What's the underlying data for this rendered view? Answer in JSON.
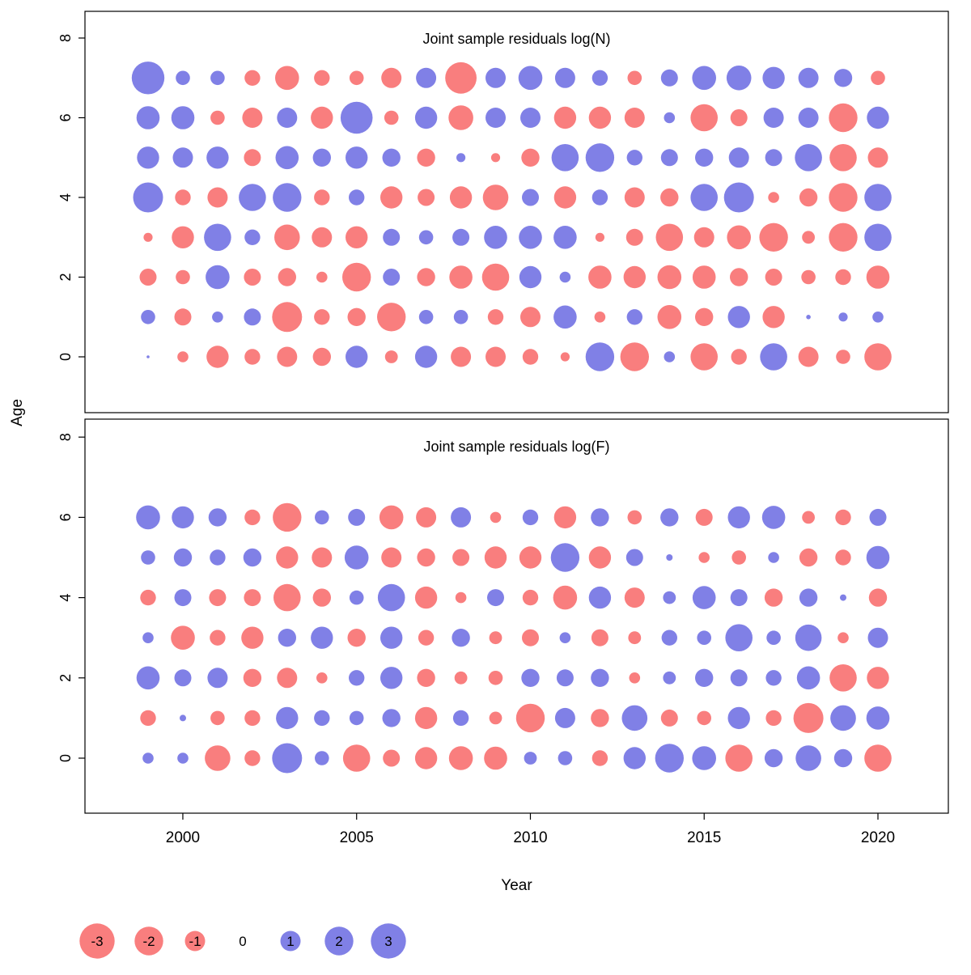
{
  "figure": {
    "xlabel": "Year",
    "ylabel": "Age",
    "colors": {
      "negative": "#f97e7e",
      "positive": "#8080e6",
      "panel_title": "#787878",
      "axis": "#000000",
      "background": "#ffffff"
    },
    "legend": {
      "values": [
        -3,
        -2,
        -1,
        0,
        1,
        2,
        3
      ]
    }
  },
  "chart_data": [
    {
      "type": "bubble",
      "title": "Joint sample residuals log(N)",
      "xlabel": "Year",
      "ylabel": "Age",
      "x": [
        1999,
        2000,
        2001,
        2002,
        2003,
        2004,
        2005,
        2006,
        2007,
        2008,
        2009,
        2010,
        2011,
        2012,
        2013,
        2014,
        2015,
        2016,
        2017,
        2018,
        2019,
        2020
      ],
      "xticks": [
        2000,
        2005,
        2010,
        2015,
        2020
      ],
      "yticks": [
        0,
        2,
        4,
        6,
        8
      ],
      "ylim": [
        -1.5,
        8.5
      ],
      "size_encoding": "radius proportional to sqrt(abs(residual))",
      "color_encoding": "red = negative residual, blue = positive residual",
      "series": [
        {
          "age": 7,
          "values": [
            2.6,
            0.5,
            0.5,
            -0.6,
            -1.4,
            -0.6,
            -0.5,
            -1.0,
            1.0,
            -2.4,
            1.0,
            1.4,
            1.0,
            0.6,
            -0.5,
            0.7,
            1.4,
            1.5,
            1.2,
            1.0,
            0.8,
            -0.5
          ]
        },
        {
          "age": 6,
          "values": [
            1.3,
            1.3,
            -0.5,
            -1.0,
            1.0,
            -1.2,
            2.5,
            -0.5,
            1.2,
            -1.5,
            1.0,
            1.0,
            -1.2,
            -1.2,
            -1.0,
            0.3,
            -1.8,
            -0.7,
            1.0,
            1.0,
            -2.0,
            1.2
          ]
        },
        {
          "age": 5,
          "values": [
            1.2,
            1.0,
            1.2,
            -0.7,
            1.3,
            0.8,
            1.2,
            0.8,
            -0.8,
            0.2,
            -0.2,
            -0.8,
            1.8,
            2.0,
            0.6,
            0.7,
            0.8,
            1.0,
            0.7,
            1.8,
            -1.8,
            -1.0
          ]
        },
        {
          "age": 4,
          "values": [
            2.2,
            -0.6,
            -1.0,
            1.8,
            2.0,
            -0.6,
            0.6,
            -1.2,
            -0.7,
            -1.2,
            -1.6,
            0.7,
            -1.2,
            0.6,
            -1.0,
            -0.8,
            1.8,
            2.2,
            -0.3,
            -0.8,
            -2.0,
            1.8
          ]
        },
        {
          "age": 3,
          "values": [
            -0.2,
            -1.2,
            1.8,
            0.6,
            -1.6,
            -1.0,
            -1.2,
            0.7,
            0.5,
            0.7,
            1.3,
            1.3,
            1.3,
            -0.2,
            -0.7,
            -1.8,
            -1.0,
            -1.4,
            -2.0,
            -0.4,
            -2.0,
            1.8
          ]
        },
        {
          "age": 2,
          "values": [
            -0.7,
            -0.5,
            1.4,
            -0.7,
            -0.8,
            -0.3,
            -2.0,
            0.7,
            -0.8,
            -1.3,
            -1.8,
            1.2,
            0.3,
            -1.3,
            -1.2,
            -1.4,
            -1.3,
            -0.8,
            -0.7,
            -0.5,
            -0.6,
            -1.3
          ]
        },
        {
          "age": 1,
          "values": [
            0.5,
            -0.7,
            0.3,
            0.7,
            -2.2,
            -0.6,
            -0.8,
            -2.0,
            0.5,
            0.5,
            -0.6,
            -1.0,
            1.3,
            -0.3,
            0.6,
            -1.4,
            -0.8,
            1.2,
            -1.2,
            0.05,
            0.2,
            0.3
          ]
        },
        {
          "age": 0,
          "values": [
            0.02,
            -0.3,
            -1.2,
            -0.6,
            -1.0,
            -0.8,
            1.2,
            -0.4,
            1.2,
            -1.0,
            -1.0,
            -0.6,
            -0.2,
            2.0,
            -2.0,
            0.3,
            -1.8,
            -0.6,
            1.8,
            -1.0,
            -0.5,
            -1.8
          ]
        }
      ]
    },
    {
      "type": "bubble",
      "title": "Joint sample residuals log(F)",
      "xlabel": "Year",
      "ylabel": "Age",
      "x": [
        1999,
        2000,
        2001,
        2002,
        2003,
        2004,
        2005,
        2006,
        2007,
        2008,
        2009,
        2010,
        2011,
        2012,
        2013,
        2014,
        2015,
        2016,
        2017,
        2018,
        2019,
        2020
      ],
      "xticks": [
        2000,
        2005,
        2010,
        2015,
        2020
      ],
      "yticks": [
        0,
        2,
        4,
        6,
        8
      ],
      "ylim": [
        -1.5,
        8.5
      ],
      "size_encoding": "radius proportional to sqrt(abs(residual))",
      "color_encoding": "red = negative residual, blue = positive residual",
      "series": [
        {
          "age": 6,
          "values": [
            1.4,
            1.2,
            0.8,
            -0.6,
            -2.0,
            0.5,
            0.7,
            -1.4,
            -1.0,
            1.0,
            -0.3,
            0.6,
            -1.2,
            0.8,
            -0.5,
            0.8,
            -0.7,
            1.2,
            1.3,
            -0.4,
            -0.6,
            0.7
          ]
        },
        {
          "age": 5,
          "values": [
            0.5,
            0.8,
            0.6,
            0.8,
            -1.2,
            -1.0,
            1.4,
            -1.0,
            -0.8,
            -0.7,
            -1.2,
            -1.2,
            2.0,
            -1.2,
            0.7,
            0.1,
            -0.3,
            -0.5,
            0.3,
            -0.8,
            -0.6,
            1.3
          ]
        },
        {
          "age": 4,
          "values": [
            -0.6,
            0.7,
            -0.7,
            -0.7,
            -1.8,
            -0.8,
            0.5,
            1.8,
            -1.2,
            -0.3,
            0.7,
            -0.6,
            -1.4,
            1.2,
            -1.0,
            0.4,
            1.3,
            0.7,
            -0.8,
            0.8,
            0.1,
            -0.8
          ]
        },
        {
          "age": 3,
          "values": [
            0.3,
            -1.4,
            -0.6,
            -1.2,
            0.8,
            1.2,
            -0.8,
            1.2,
            -0.6,
            0.8,
            -0.4,
            -0.7,
            0.3,
            -0.7,
            -0.4,
            0.6,
            0.5,
            1.8,
            0.5,
            1.7,
            -0.3,
            1.0
          ]
        },
        {
          "age": 2,
          "values": [
            1.3,
            0.7,
            1.0,
            -0.8,
            -1.0,
            -0.3,
            0.6,
            1.2,
            -0.8,
            -0.4,
            -0.5,
            0.8,
            0.7,
            0.8,
            -0.3,
            0.4,
            0.8,
            0.7,
            0.6,
            1.3,
            -1.8,
            -1.2
          ]
        },
        {
          "age": 1,
          "values": [
            -0.6,
            0.1,
            -0.5,
            -0.6,
            1.2,
            0.6,
            0.5,
            0.8,
            -1.2,
            0.6,
            -0.4,
            -2.0,
            1.0,
            -0.8,
            1.6,
            -0.7,
            -0.5,
            1.2,
            -0.6,
            -2.2,
            1.6,
            1.3
          ]
        },
        {
          "age": 0,
          "values": [
            0.3,
            0.3,
            -1.6,
            -0.6,
            2.2,
            0.5,
            -1.8,
            -0.7,
            -1.2,
            -1.4,
            -1.3,
            0.4,
            0.5,
            -0.6,
            1.2,
            2.0,
            1.4,
            -1.8,
            0.8,
            1.6,
            0.8,
            -1.8
          ]
        }
      ]
    }
  ]
}
